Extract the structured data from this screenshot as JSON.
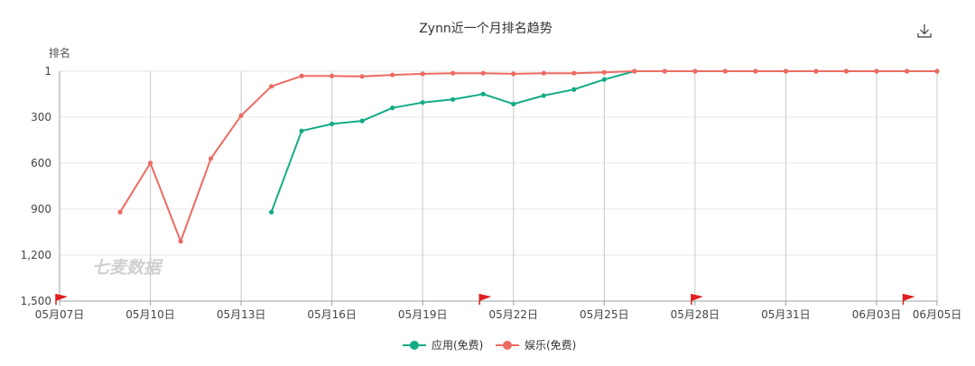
{
  "chart_data": {
    "type": "line",
    "title": "Zynn近一个月排名趋势",
    "ylabel": "排名",
    "xlabel": "",
    "y_reversed": true,
    "ylim": [
      1,
      1500
    ],
    "yticks": [
      1,
      300,
      600,
      900,
      1200,
      1500
    ],
    "ytick_labels": [
      "1",
      "300",
      "600",
      "900",
      "1,200",
      "1,500"
    ],
    "grid": true,
    "legend_position": "bottom-center",
    "x": [
      "05-07",
      "05-08",
      "05-09",
      "05-10",
      "05-11",
      "05-12",
      "05-13",
      "05-14",
      "05-15",
      "05-16",
      "05-17",
      "05-18",
      "05-19",
      "05-20",
      "05-21",
      "05-22",
      "05-23",
      "05-24",
      "05-25",
      "05-26",
      "05-27",
      "05-28",
      "05-29",
      "05-30",
      "05-31",
      "06-01",
      "06-02",
      "06-03",
      "06-04",
      "06-05"
    ],
    "xtick_labels": [
      "05月07日",
      "05月10日",
      "05月13日",
      "05月16日",
      "05月19日",
      "05月22日",
      "05月25日",
      "05月28日",
      "05月31日",
      "06月03日",
      "06月05日"
    ],
    "xtick_index": [
      0,
      3,
      6,
      9,
      12,
      15,
      18,
      21,
      24,
      27,
      29
    ],
    "flag_index": [
      0,
      14,
      21,
      28
    ],
    "series": [
      {
        "name": "应用(免费)",
        "color": "#13ab84",
        "values": [
          null,
          null,
          null,
          null,
          null,
          null,
          null,
          920,
          390,
          345,
          325,
          240,
          205,
          185,
          150,
          215,
          160,
          120,
          55,
          1,
          1,
          1,
          1,
          1,
          1,
          1,
          1,
          1,
          1,
          1
        ]
      },
      {
        "name": "娱乐(免费)",
        "color": "#ec6b62",
        "values": [
          null,
          null,
          920,
          600,
          1110,
          570,
          290,
          100,
          32,
          32,
          35,
          25,
          18,
          14,
          14,
          18,
          14,
          14,
          8,
          1,
          1,
          1,
          1,
          1,
          1,
          1,
          1,
          1,
          1,
          1
        ]
      }
    ]
  },
  "watermark": "七麦数据",
  "download_icon": "download-icon",
  "colors": {
    "flag": "#e02020",
    "axis": "#9aa0a6",
    "grid": "#e6e6e6",
    "vgrid": "#c8c8c8"
  }
}
